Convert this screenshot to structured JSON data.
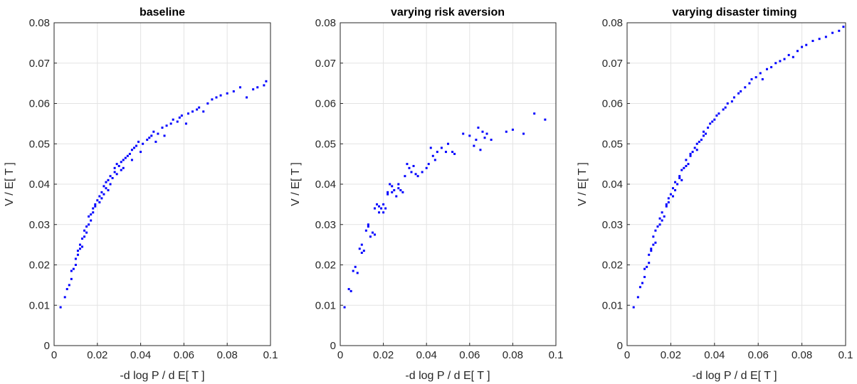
{
  "chart_data": [
    {
      "type": "scatter",
      "title": "baseline",
      "xlabel": "-d log P / d E[ T ]",
      "ylabel": "V / E[ T ]",
      "xlim": [
        0,
        0.1
      ],
      "ylim": [
        0,
        0.08
      ],
      "xticks": [
        "0",
        "0.02",
        "0.04",
        "0.06",
        "0.08",
        "0.1"
      ],
      "yticks": [
        "0",
        "0.01",
        "0.02",
        "0.03",
        "0.04",
        "0.05",
        "0.06",
        "0.07",
        "0.08"
      ],
      "grid": true,
      "marker_color": "#0000ff",
      "x": [
        0.003,
        0.005,
        0.006,
        0.007,
        0.008,
        0.008,
        0.009,
        0.01,
        0.01,
        0.011,
        0.011,
        0.012,
        0.012,
        0.013,
        0.013,
        0.014,
        0.014,
        0.015,
        0.015,
        0.016,
        0.016,
        0.017,
        0.017,
        0.018,
        0.018,
        0.019,
        0.019,
        0.02,
        0.021,
        0.021,
        0.022,
        0.022,
        0.023,
        0.023,
        0.024,
        0.024,
        0.025,
        0.025,
        0.026,
        0.026,
        0.027,
        0.028,
        0.028,
        0.029,
        0.029,
        0.03,
        0.031,
        0.031,
        0.032,
        0.032,
        0.033,
        0.034,
        0.035,
        0.036,
        0.036,
        0.037,
        0.038,
        0.039,
        0.04,
        0.041,
        0.043,
        0.044,
        0.045,
        0.046,
        0.047,
        0.048,
        0.05,
        0.051,
        0.052,
        0.054,
        0.055,
        0.057,
        0.058,
        0.059,
        0.061,
        0.062,
        0.064,
        0.066,
        0.067,
        0.069,
        0.071,
        0.073,
        0.075,
        0.077,
        0.08,
        0.083,
        0.086,
        0.089,
        0.092,
        0.094,
        0.097,
        0.098
      ],
      "y": [
        0.0095,
        0.012,
        0.014,
        0.015,
        0.0165,
        0.0185,
        0.019,
        0.02,
        0.0215,
        0.0225,
        0.0235,
        0.024,
        0.025,
        0.0245,
        0.0265,
        0.027,
        0.0285,
        0.028,
        0.0295,
        0.03,
        0.032,
        0.031,
        0.0325,
        0.033,
        0.034,
        0.035,
        0.0345,
        0.036,
        0.0355,
        0.037,
        0.0365,
        0.038,
        0.0375,
        0.0395,
        0.039,
        0.0405,
        0.0385,
        0.041,
        0.04,
        0.042,
        0.0415,
        0.043,
        0.044,
        0.0425,
        0.045,
        0.0445,
        0.0435,
        0.0455,
        0.044,
        0.046,
        0.0465,
        0.047,
        0.0475,
        0.046,
        0.0485,
        0.049,
        0.0495,
        0.0505,
        0.048,
        0.05,
        0.051,
        0.0515,
        0.052,
        0.053,
        0.0505,
        0.0525,
        0.054,
        0.052,
        0.0545,
        0.055,
        0.056,
        0.0555,
        0.0565,
        0.057,
        0.055,
        0.0575,
        0.058,
        0.0585,
        0.059,
        0.058,
        0.06,
        0.061,
        0.0615,
        0.062,
        0.0625,
        0.063,
        0.064,
        0.0615,
        0.0635,
        0.064,
        0.0645,
        0.0655
      ]
    },
    {
      "type": "scatter",
      "title": "varying risk aversion",
      "xlabel": "-d log P / d E[ T ]",
      "ylabel": "V / E[ T ]",
      "xlim": [
        0,
        0.1
      ],
      "ylim": [
        0,
        0.08
      ],
      "xticks": [
        "0",
        "0.02",
        "0.04",
        "0.06",
        "0.08",
        "0.1"
      ],
      "yticks": [
        "0",
        "0.01",
        "0.02",
        "0.03",
        "0.04",
        "0.05",
        "0.06",
        "0.07",
        "0.08"
      ],
      "grid": true,
      "marker_color": "#0000ff",
      "x": [
        0.002,
        0.004,
        0.005,
        0.006,
        0.007,
        0.008,
        0.009,
        0.01,
        0.01,
        0.011,
        0.012,
        0.013,
        0.013,
        0.014,
        0.015,
        0.016,
        0.016,
        0.017,
        0.018,
        0.018,
        0.019,
        0.02,
        0.02,
        0.021,
        0.022,
        0.022,
        0.023,
        0.024,
        0.024,
        0.025,
        0.026,
        0.027,
        0.027,
        0.028,
        0.029,
        0.03,
        0.031,
        0.032,
        0.033,
        0.034,
        0.035,
        0.036,
        0.038,
        0.04,
        0.041,
        0.042,
        0.043,
        0.044,
        0.045,
        0.047,
        0.049,
        0.05,
        0.052,
        0.053,
        0.057,
        0.06,
        0.062,
        0.063,
        0.064,
        0.065,
        0.066,
        0.067,
        0.068,
        0.07,
        0.077,
        0.08,
        0.085,
        0.09,
        0.095
      ],
      "y": [
        0.0095,
        0.014,
        0.0135,
        0.0185,
        0.0195,
        0.018,
        0.024,
        0.025,
        0.023,
        0.0235,
        0.0285,
        0.0295,
        0.03,
        0.027,
        0.028,
        0.034,
        0.0275,
        0.035,
        0.033,
        0.0345,
        0.034,
        0.033,
        0.035,
        0.034,
        0.038,
        0.0375,
        0.04,
        0.0395,
        0.038,
        0.0385,
        0.037,
        0.039,
        0.04,
        0.0385,
        0.038,
        0.042,
        0.045,
        0.044,
        0.043,
        0.0445,
        0.0425,
        0.042,
        0.043,
        0.044,
        0.045,
        0.049,
        0.047,
        0.046,
        0.048,
        0.049,
        0.048,
        0.05,
        0.048,
        0.0475,
        0.0525,
        0.052,
        0.0495,
        0.051,
        0.054,
        0.0485,
        0.053,
        0.0515,
        0.0525,
        0.051,
        0.053,
        0.0535,
        0.0525,
        0.0575,
        0.056
      ]
    },
    {
      "type": "scatter",
      "title": "varying disaster timing",
      "xlabel": "-d log P / d E[ T ]",
      "ylabel": "V / E[ T ]",
      "xlim": [
        0,
        0.1
      ],
      "ylim": [
        0,
        0.08
      ],
      "xticks": [
        "0",
        "0.02",
        "0.04",
        "0.06",
        "0.08",
        "0.1"
      ],
      "yticks": [
        "0",
        "0.01",
        "0.02",
        "0.03",
        "0.04",
        "0.05",
        "0.06",
        "0.07",
        "0.08"
      ],
      "grid": true,
      "marker_color": "#0000ff",
      "x": [
        0.003,
        0.005,
        0.006,
        0.007,
        0.008,
        0.008,
        0.009,
        0.01,
        0.01,
        0.011,
        0.011,
        0.012,
        0.012,
        0.013,
        0.013,
        0.014,
        0.015,
        0.015,
        0.016,
        0.016,
        0.017,
        0.018,
        0.018,
        0.019,
        0.019,
        0.02,
        0.021,
        0.021,
        0.022,
        0.022,
        0.023,
        0.024,
        0.024,
        0.025,
        0.025,
        0.026,
        0.027,
        0.027,
        0.028,
        0.029,
        0.029,
        0.03,
        0.031,
        0.032,
        0.032,
        0.033,
        0.034,
        0.035,
        0.035,
        0.036,
        0.037,
        0.038,
        0.039,
        0.04,
        0.041,
        0.042,
        0.044,
        0.045,
        0.046,
        0.048,
        0.049,
        0.051,
        0.052,
        0.054,
        0.056,
        0.057,
        0.059,
        0.061,
        0.062,
        0.064,
        0.066,
        0.068,
        0.07,
        0.072,
        0.074,
        0.076,
        0.078,
        0.08,
        0.082,
        0.085,
        0.088,
        0.091,
        0.094,
        0.097,
        0.099
      ],
      "y": [
        0.0095,
        0.012,
        0.0145,
        0.0155,
        0.017,
        0.019,
        0.0195,
        0.0205,
        0.0225,
        0.0235,
        0.024,
        0.025,
        0.027,
        0.0255,
        0.0285,
        0.0295,
        0.03,
        0.0315,
        0.031,
        0.033,
        0.032,
        0.0345,
        0.035,
        0.0365,
        0.0355,
        0.0375,
        0.037,
        0.039,
        0.0385,
        0.0405,
        0.04,
        0.0415,
        0.042,
        0.041,
        0.0435,
        0.044,
        0.0445,
        0.046,
        0.045,
        0.047,
        0.0475,
        0.048,
        0.049,
        0.0485,
        0.05,
        0.0505,
        0.051,
        0.052,
        0.053,
        0.0525,
        0.054,
        0.055,
        0.0555,
        0.056,
        0.057,
        0.0575,
        0.0585,
        0.059,
        0.06,
        0.0605,
        0.0615,
        0.0625,
        0.063,
        0.064,
        0.065,
        0.066,
        0.0665,
        0.0675,
        0.066,
        0.0685,
        0.069,
        0.07,
        0.0705,
        0.071,
        0.072,
        0.0715,
        0.073,
        0.074,
        0.0745,
        0.0755,
        0.076,
        0.0765,
        0.0775,
        0.078,
        0.079
      ]
    }
  ]
}
